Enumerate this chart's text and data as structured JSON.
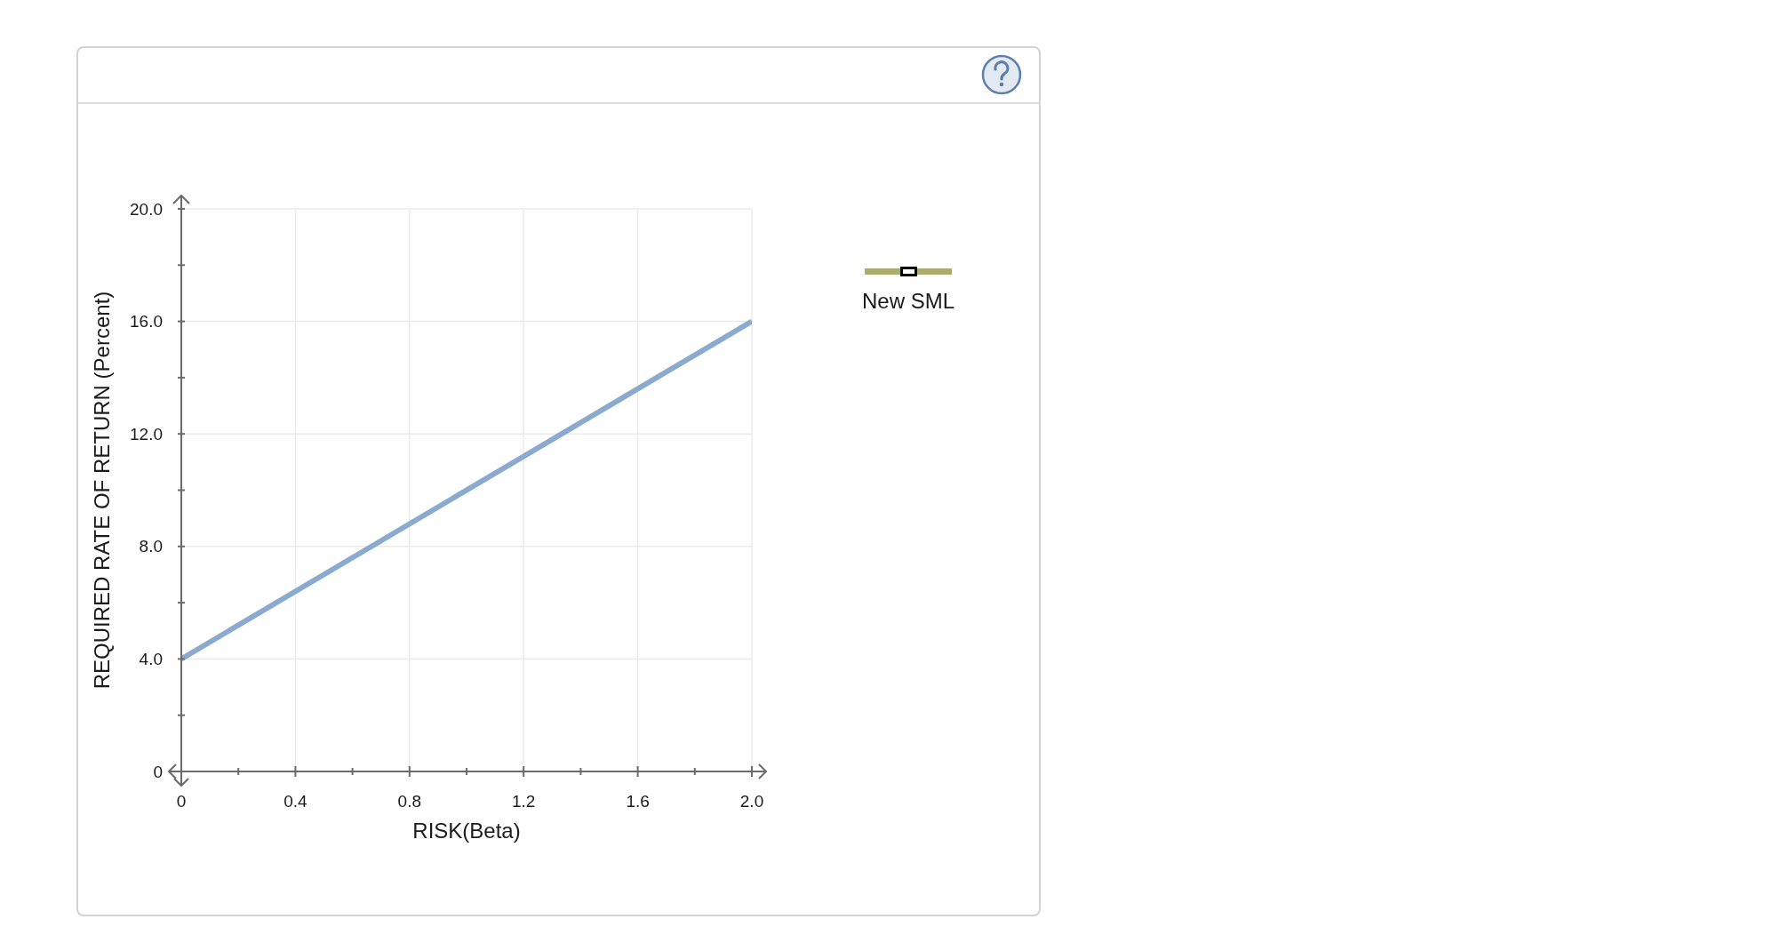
{
  "chart_data": {
    "type": "line",
    "xlabel": "RISK(Beta)",
    "ylabel": "REQUIRED RATE OF RETURN (Percent)",
    "x": [
      0,
      2
    ],
    "series": [
      {
        "color": "#8aabcf",
        "values": [
          4,
          16
        ]
      },
      {
        "name": "New SML",
        "color": "#acac6c",
        "values": [
          null,
          null
        ],
        "marker": "square"
      }
    ],
    "xlim": [
      0,
      2
    ],
    "ylim": [
      0,
      20
    ],
    "xticks": [
      0,
      {
        "value": 0.2,
        "label": null
      },
      0.4,
      {
        "value": 0.6,
        "label": null
      },
      0.8,
      {
        "value": 1,
        "label": null
      },
      1.2,
      {
        "value": 1.4,
        "label": null
      },
      1.6,
      {
        "value": 1.8,
        "label": null
      },
      {
        "value": 2,
        "label": "2.0"
      }
    ],
    "yticks": [
      0,
      {
        "value": 2,
        "label": null
      },
      {
        "value": 4,
        "label": "4.0"
      },
      {
        "value": 6,
        "label": null
      },
      {
        "value": 8,
        "label": "8.0"
      },
      {
        "value": 10,
        "label": null
      },
      {
        "value": 12,
        "label": "12.0"
      },
      {
        "value": 14,
        "label": null
      },
      {
        "value": 16,
        "label": "16.0"
      },
      {
        "value": 18,
        "label": null
      },
      {
        "value": 20,
        "label": "20.0"
      }
    ],
    "grid": true,
    "legend": "top right"
  }
}
